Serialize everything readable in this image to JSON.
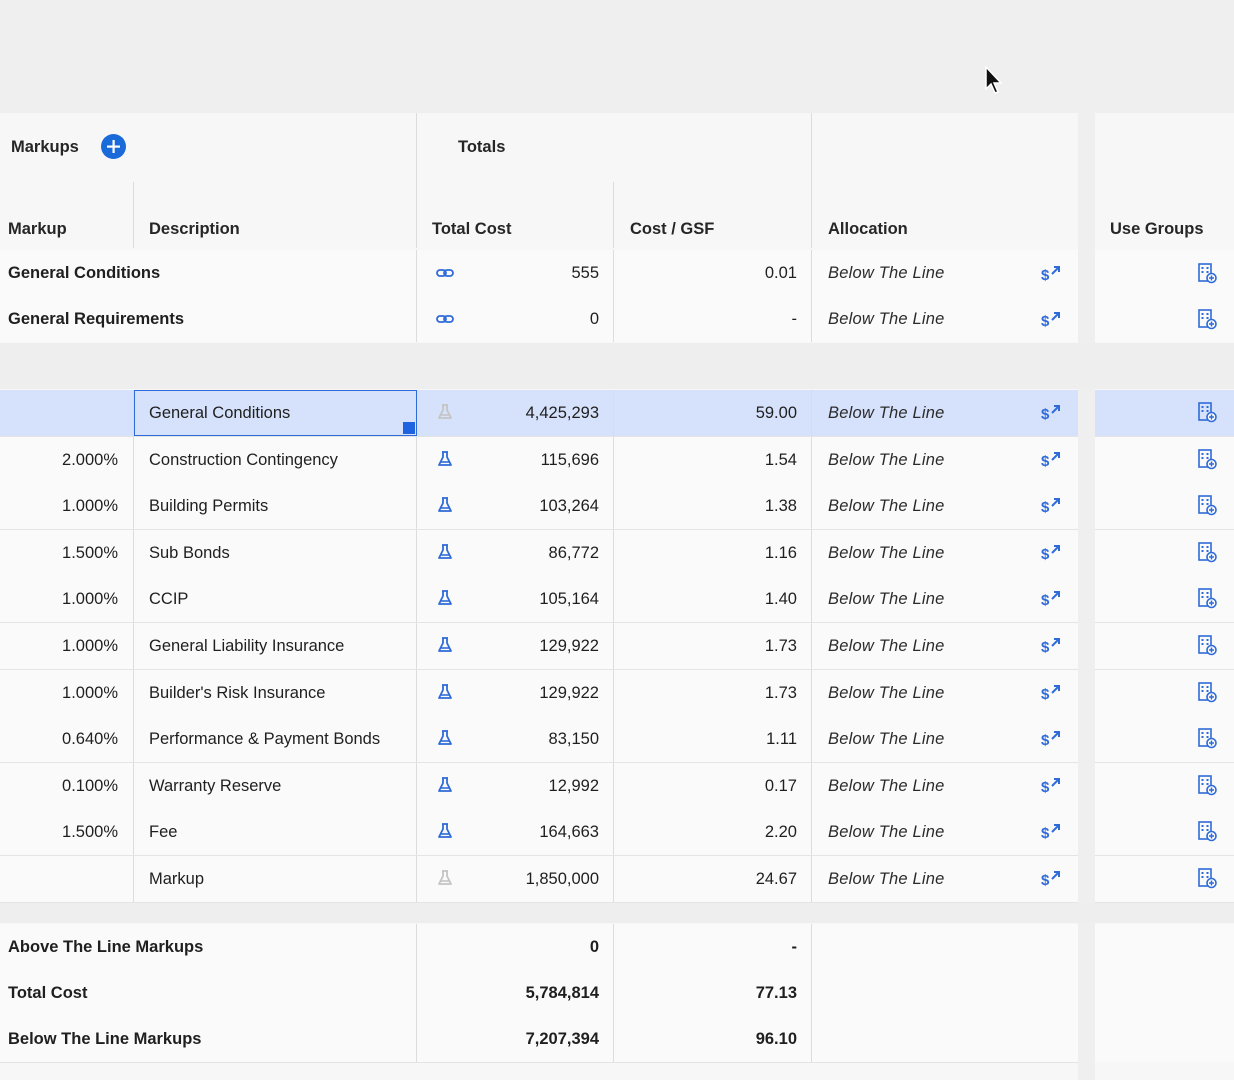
{
  "markups_section": {
    "title": "Markups",
    "add_label": "+"
  },
  "totals_section": {
    "title": "Totals"
  },
  "columns": {
    "markup": "Markup",
    "description": "Description",
    "total_cost": "Total Cost",
    "cost_gsf": "Cost / GSF",
    "allocation": "Allocation",
    "use_groups": "Use Groups"
  },
  "group_rows": [
    {
      "name": "General Conditions",
      "total_cost": "555",
      "cost_gsf": "0.01",
      "allocation": "Below The Line",
      "total_icon": "link-icon"
    },
    {
      "name": "General Requirements",
      "total_cost": "0",
      "cost_gsf": "-",
      "allocation": "Below The Line",
      "total_icon": "link-icon"
    }
  ],
  "markup_rows": [
    {
      "markup": "",
      "description": "General Conditions",
      "total_cost": "4,425,293",
      "cost_gsf": "59.00",
      "allocation": "Below The Line",
      "selected": true
    },
    {
      "markup": "2.000%",
      "description": "Construction Contingency",
      "total_cost": "115,696",
      "cost_gsf": "1.54",
      "allocation": "Below The Line"
    },
    {
      "markup": "1.000%",
      "description": "Building Permits",
      "total_cost": "103,264",
      "cost_gsf": "1.38",
      "allocation": "Below The Line"
    },
    {
      "markup": "1.500%",
      "description": "Sub Bonds",
      "total_cost": "86,772",
      "cost_gsf": "1.16",
      "allocation": "Below The Line"
    },
    {
      "markup": "1.000%",
      "description": "CCIP",
      "total_cost": "105,164",
      "cost_gsf": "1.40",
      "allocation": "Below The Line"
    },
    {
      "markup": "1.000%",
      "description": "General Liability Insurance",
      "total_cost": "129,922",
      "cost_gsf": "1.73",
      "allocation": "Below The Line"
    },
    {
      "markup": "1.000%",
      "description": "Builder's Risk Insurance",
      "total_cost": "129,922",
      "cost_gsf": "1.73",
      "allocation": "Below The Line"
    },
    {
      "markup": "0.640%",
      "description": "Performance & Payment Bonds",
      "total_cost": "83,150",
      "cost_gsf": "1.11",
      "allocation": "Below The Line"
    },
    {
      "markup": "0.100%",
      "description": "Warranty Reserve",
      "total_cost": "12,992",
      "cost_gsf": "0.17",
      "allocation": "Below The Line"
    },
    {
      "markup": "1.500%",
      "description": "Fee",
      "total_cost": "164,663",
      "cost_gsf": "2.20",
      "allocation": "Below The Line"
    },
    {
      "markup": "",
      "description": "Markup",
      "total_cost": "1,850,000",
      "cost_gsf": "24.67",
      "allocation": "Below The Line"
    }
  ],
  "summary_rows": [
    {
      "label": "Above The Line Markups",
      "total_cost": "0",
      "cost_gsf": "-"
    },
    {
      "label": "Total Cost",
      "total_cost": "5,784,814",
      "cost_gsf": "77.13"
    },
    {
      "label": "Below The Line Markups",
      "total_cost": "7,207,394",
      "cost_gsf": "96.10"
    }
  ],
  "colors": {
    "accent": "#1a6bd9",
    "selected_row": "#d6e2fb",
    "icon_blue": "#2f6bd8"
  },
  "icons": {
    "add": "plus-circle-icon",
    "link": "link-icon",
    "formula": "flask-icon",
    "allocate": "dollar-arrow-icon",
    "use_groups": "building-plus-icon",
    "cursor": "mouse-pointer-icon"
  }
}
